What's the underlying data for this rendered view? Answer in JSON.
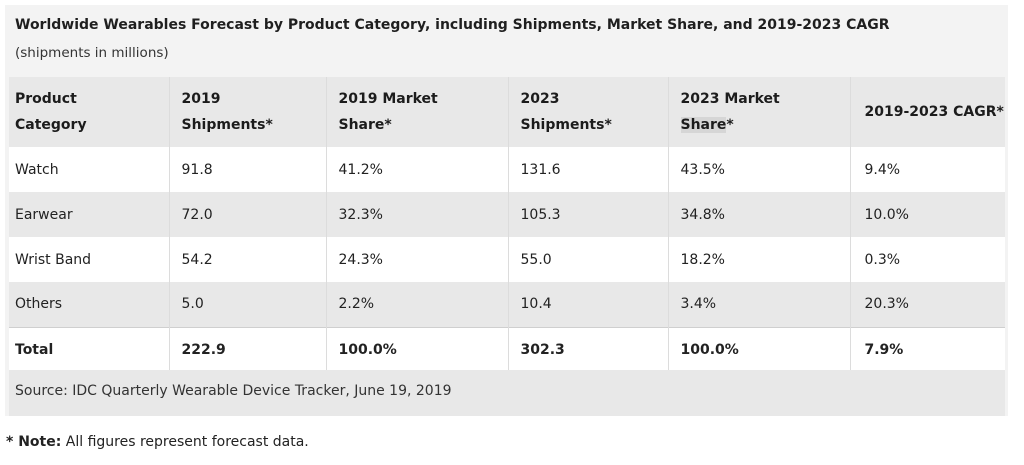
{
  "title": "Worldwide Wearables Forecast by Product Category, including Shipments, Market Share, and 2019-2023 CAGR",
  "subtitle": "(shipments in millions)",
  "table": {
    "headers": {
      "category_1": "Product",
      "category_2": "Category",
      "ship2019_1": "2019",
      "ship2019_2": "Shipments*",
      "share2019_1": "2019 Market",
      "share2019_2": "Share*",
      "ship2023_1": "2023",
      "ship2023_2": "Shipments*",
      "share2023_1": "2023 Market",
      "share2023_2a": "Share",
      "share2023_2b": "*",
      "cagr": "2019-2023 CAGR*"
    },
    "rows": [
      {
        "category": "Watch",
        "ship2019": "91.8",
        "share2019": "41.2%",
        "ship2023": "131.6",
        "share2023": "43.5%",
        "cagr": "9.4%"
      },
      {
        "category": "Earwear",
        "ship2019": "72.0",
        "share2019": "32.3%",
        "ship2023": "105.3",
        "share2023": "34.8%",
        "cagr": "10.0%"
      },
      {
        "category": "Wrist Band",
        "ship2019": "54.2",
        "share2019": "24.3%",
        "ship2023": "55.0",
        "share2023": "18.2%",
        "cagr": "0.3%"
      },
      {
        "category": "Others",
        "ship2019": "5.0",
        "share2019": "2.2%",
        "ship2023": "10.4",
        "share2023": "3.4%",
        "cagr": "20.3%"
      }
    ],
    "total": {
      "category": "Total",
      "ship2019": "222.9",
      "share2019": "100.0%",
      "ship2023": "302.3",
      "share2023": "100.0%",
      "cagr": "7.9%"
    }
  },
  "source": "Source: IDC Quarterly Wearable Device Tracker, June 19, 2019",
  "note": {
    "label": "* Note:",
    "text": " All figures represent forecast data."
  }
}
